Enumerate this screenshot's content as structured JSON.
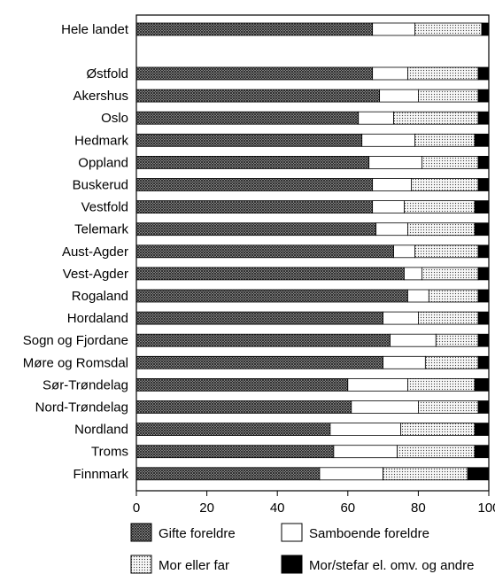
{
  "chart_data": {
    "type": "bar",
    "orientation": "horizontal",
    "stacked": true,
    "xlim": [
      0,
      100
    ],
    "x_ticks": [
      0,
      20,
      40,
      60,
      80,
      100
    ],
    "grid": false,
    "legend_position": "bottom",
    "categories": [
      "Hele landet",
      "Østfold",
      "Akershus",
      "Oslo",
      "Hedmark",
      "Oppland",
      "Buskerud",
      "Vestfold",
      "Telemark",
      "Aust-Agder",
      "Vest-Agder",
      "Rogaland",
      "Hordaland",
      "Sogn og Fjordane",
      "Møre og Romsdal",
      "Sør-Trøndelag",
      "Nord-Trøndelag",
      "Nordland",
      "Troms",
      "Finnmark"
    ],
    "series": [
      {
        "name": "Gifte foreldre",
        "pattern": "crosshatch",
        "values": [
          67,
          67,
          69,
          63,
          64,
          66,
          67,
          67,
          68,
          73,
          76,
          77,
          70,
          72,
          70,
          60,
          61,
          55,
          56,
          52
        ]
      },
      {
        "name": "Samboende foreldre",
        "pattern": "white",
        "values": [
          12,
          10,
          11,
          10,
          15,
          15,
          11,
          9,
          9,
          6,
          5,
          6,
          10,
          13,
          12,
          17,
          19,
          20,
          18,
          18
        ]
      },
      {
        "name": "Mor eller far",
        "pattern": "dots",
        "values": [
          19,
          20,
          17,
          24,
          17,
          16,
          19,
          20,
          19,
          18,
          16,
          14,
          17,
          12,
          15,
          19,
          17,
          21,
          22,
          24
        ]
      },
      {
        "name": "Mor/stefar el. omv. og andre",
        "pattern": "black",
        "values": [
          2,
          3,
          3,
          3,
          4,
          3,
          3,
          4,
          4,
          3,
          3,
          3,
          3,
          3,
          3,
          4,
          3,
          4,
          4,
          6
        ]
      }
    ]
  }
}
